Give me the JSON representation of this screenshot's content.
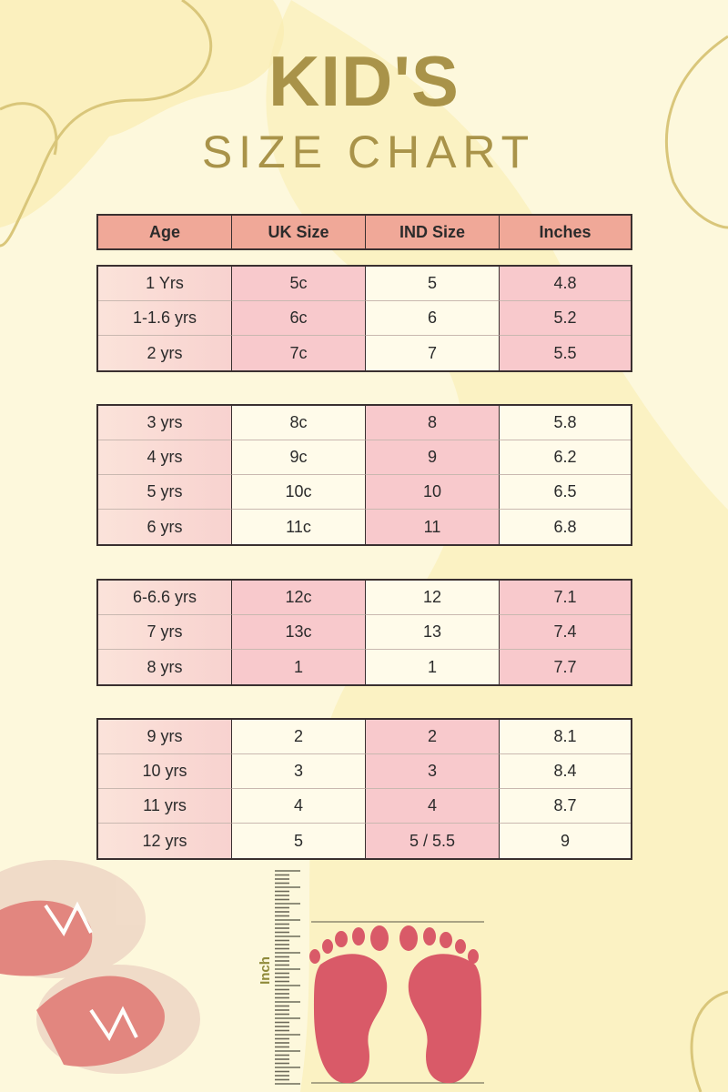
{
  "title": {
    "line1": "KID'S",
    "line2": "SIZE CHART"
  },
  "colors": {
    "header": "#f0a898",
    "pink": "#f8c9cc",
    "cream": "#fffbea",
    "title": "#a99349",
    "feet": "#d95a68"
  },
  "table": {
    "headers": [
      "Age",
      "UK Size",
      "IND Size",
      "Inches"
    ],
    "groups": [
      {
        "shading": [
          "age",
          "pink",
          "cream",
          "pink"
        ],
        "rows": [
          [
            "1 Yrs",
            "5c",
            "5",
            "4.8"
          ],
          [
            "1-1.6 yrs",
            "6c",
            "6",
            "5.2"
          ],
          [
            "2 yrs",
            "7c",
            "7",
            "5.5"
          ]
        ]
      },
      {
        "shading": [
          "age",
          "cream",
          "pink",
          "cream"
        ],
        "rows": [
          [
            "3 yrs",
            "8c",
            "8",
            "5.8"
          ],
          [
            "4 yrs",
            "9c",
            "9",
            "6.2"
          ],
          [
            "5 yrs",
            "10c",
            "10",
            "6.5"
          ],
          [
            "6 yrs",
            "11c",
            "11",
            "6.8"
          ]
        ]
      },
      {
        "shading": [
          "age",
          "pink",
          "cream",
          "pink"
        ],
        "rows": [
          [
            "6-6.6 yrs",
            "12c",
            "12",
            "7.1"
          ],
          [
            "7 yrs",
            "13c",
            "13",
            "7.4"
          ],
          [
            "8 yrs",
            "1",
            "1",
            "7.7"
          ]
        ]
      },
      {
        "shading": [
          "age",
          "cream",
          "pink",
          "cream"
        ],
        "rows": [
          [
            "9 yrs",
            "2",
            "2",
            "8.1"
          ],
          [
            "10 yrs",
            "3",
            "3",
            "8.4"
          ],
          [
            "11 yrs",
            "4",
            "4",
            "8.7"
          ],
          [
            "12 yrs",
            "5",
            "5 / 5.5",
            "9"
          ]
        ]
      }
    ]
  },
  "illustration": {
    "ruler_label": "Inch"
  }
}
